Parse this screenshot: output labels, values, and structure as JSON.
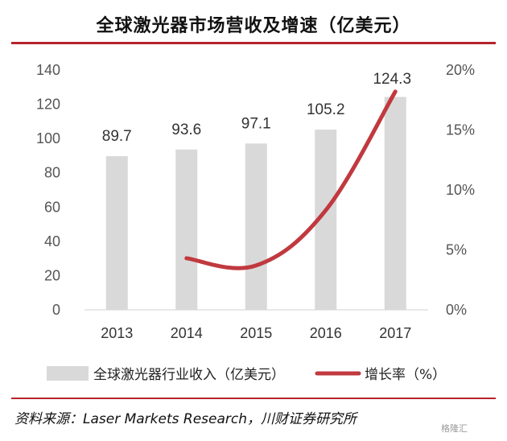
{
  "title": "全球激光器市场营收及增速（亿美元）",
  "source": "资料来源：Laser Markets Research，川财证券研究所",
  "watermark": "格隆汇",
  "colors": {
    "bar": "#d9d9d9",
    "line": "#c0393f",
    "accent": "#b5232e"
  },
  "chart_data": {
    "type": "bar",
    "categories": [
      "2013",
      "2014",
      "2015",
      "2016",
      "2017"
    ],
    "series": [
      {
        "name": "全球激光器行业收入（亿美元）",
        "type": "bar",
        "axis": "left",
        "values": [
          89.7,
          93.6,
          97.1,
          105.2,
          124.3
        ]
      },
      {
        "name": "增长率（%）",
        "type": "line",
        "axis": "right",
        "values": [
          null,
          4.3,
          3.7,
          8.3,
          18.2
        ]
      }
    ],
    "y_left": {
      "lim": [
        0,
        140
      ],
      "ticks": [
        "0",
        "20",
        "40",
        "60",
        "80",
        "100",
        "120",
        "140"
      ]
    },
    "y_right": {
      "lim": [
        0,
        20
      ],
      "ticks": [
        "0%",
        "5%",
        "10%",
        "15%",
        "20%"
      ]
    },
    "data_labels": [
      "89.7",
      "93.6",
      "97.1",
      "105.2",
      "124.3"
    ],
    "legend_position": "bottom",
    "grid": false
  }
}
